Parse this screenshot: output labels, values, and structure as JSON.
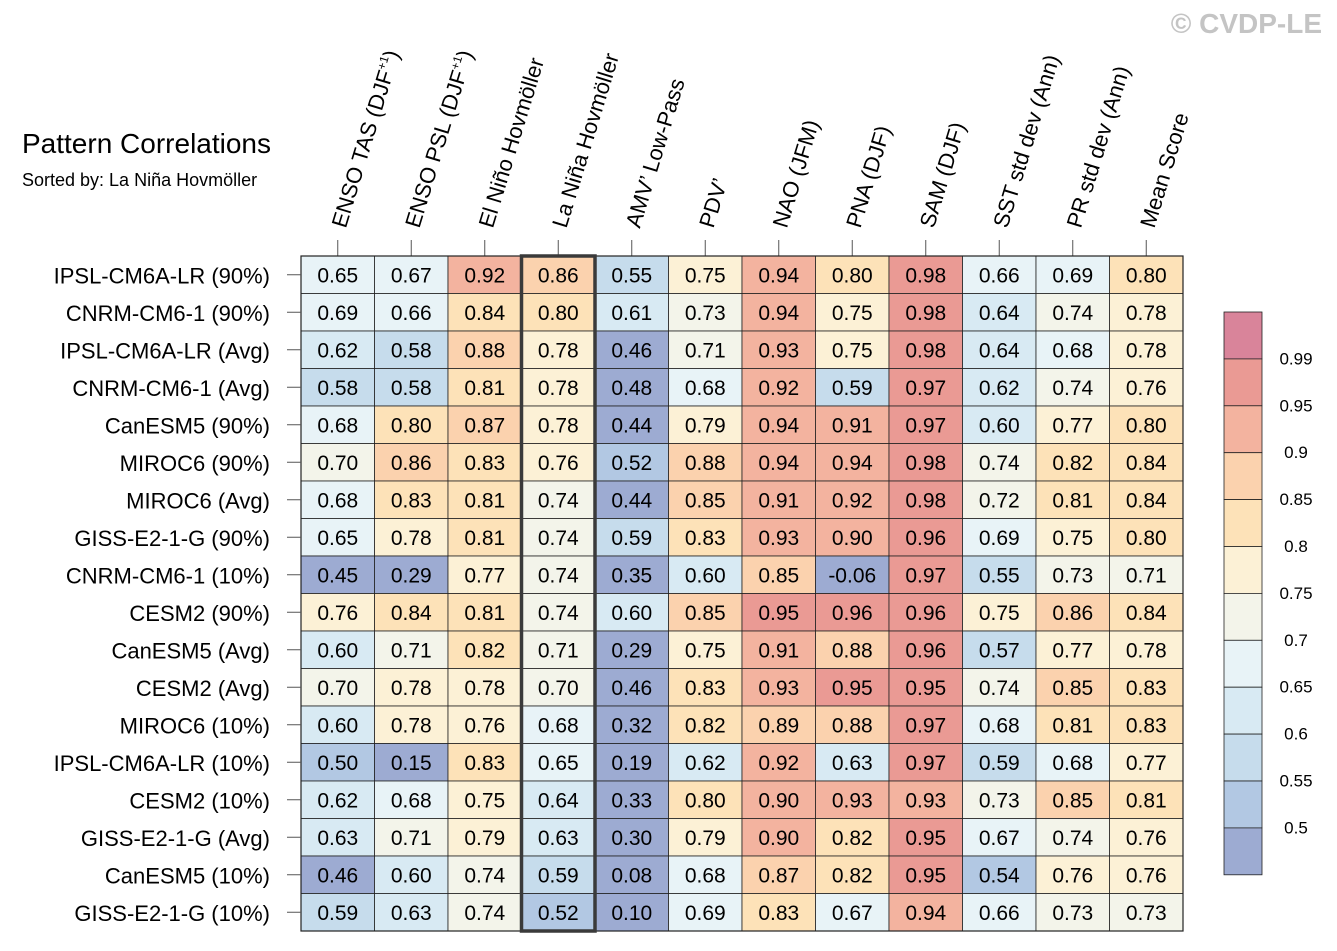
{
  "title": "Pattern Correlations",
  "subtitle": "Sorted by: La Niña Hovmöller",
  "watermark": "© CVDP-LE",
  "chart_data": {
    "type": "heatmap",
    "title": "Pattern Correlations",
    "subtitle": "Sorted by: La Niña Hovmöller",
    "highlighted_column": "La Niña Hovmöller",
    "columns": [
      "ENSO TAS (DJF+1)",
      "ENSO PSL (DJF+1)",
      "El Niño Hovmöller",
      "La Niña Hovmöller",
      "AMV’ Low-Pass",
      "PDV’",
      "NAO (JFM)",
      "PNA (DJF)",
      "SAM (DJF)",
      "SST std dev (Ann)",
      "PR std dev (Ann)",
      "Mean Score"
    ],
    "column_labels": [
      {
        "main": "ENSO TAS (DJF",
        "sup": "+1",
        "tail": ")"
      },
      {
        "main": "ENSO PSL (DJF",
        "sup": "+1",
        "tail": ")"
      },
      {
        "main": "El Niño Hovmöller",
        "sup": "",
        "tail": ""
      },
      {
        "main": "La Niña Hovmöller",
        "sup": "",
        "tail": ""
      },
      {
        "main": "AMV’ Low-Pass",
        "sup": "",
        "tail": ""
      },
      {
        "main": "PDV’",
        "sup": "",
        "tail": ""
      },
      {
        "main": "NAO (JFM)",
        "sup": "",
        "tail": ""
      },
      {
        "main": "PNA (DJF)",
        "sup": "",
        "tail": ""
      },
      {
        "main": "SAM (DJF)",
        "sup": "",
        "tail": ""
      },
      {
        "main": "SST std dev (Ann)",
        "sup": "",
        "tail": ""
      },
      {
        "main": "PR std dev (Ann)",
        "sup": "",
        "tail": ""
      },
      {
        "main": "Mean Score",
        "sup": "",
        "tail": ""
      }
    ],
    "rows": [
      "IPSL-CM6A-LR (90%)",
      "CNRM-CM6-1 (90%)",
      "IPSL-CM6A-LR (Avg)",
      "CNRM-CM6-1 (Avg)",
      "CanESM5 (90%)",
      "MIROC6 (90%)",
      "MIROC6 (Avg)",
      "GISS-E2-1-G (90%)",
      "CNRM-CM6-1 (10%)",
      "CESM2 (90%)",
      "CanESM5 (Avg)",
      "CESM2 (Avg)",
      "MIROC6 (10%)",
      "IPSL-CM6A-LR (10%)",
      "CESM2 (10%)",
      "GISS-E2-1-G (Avg)",
      "CanESM5 (10%)",
      "GISS-E2-1-G (10%)"
    ],
    "values": [
      [
        "0.65",
        "0.67",
        "0.92",
        "0.86",
        "0.55",
        "0.75",
        "0.94",
        "0.80",
        "0.98",
        "0.66",
        "0.69",
        "0.80"
      ],
      [
        "0.69",
        "0.66",
        "0.84",
        "0.80",
        "0.61",
        "0.73",
        "0.94",
        "0.75",
        "0.98",
        "0.64",
        "0.74",
        "0.78"
      ],
      [
        "0.62",
        "0.58",
        "0.88",
        "0.78",
        "0.46",
        "0.71",
        "0.93",
        "0.75",
        "0.98",
        "0.64",
        "0.68",
        "0.78"
      ],
      [
        "0.58",
        "0.58",
        "0.81",
        "0.78",
        "0.48",
        "0.68",
        "0.92",
        "0.59",
        "0.97",
        "0.62",
        "0.74",
        "0.76"
      ],
      [
        "0.68",
        "0.80",
        "0.87",
        "0.78",
        "0.44",
        "0.79",
        "0.94",
        "0.91",
        "0.97",
        "0.60",
        "0.77",
        "0.80"
      ],
      [
        "0.70",
        "0.86",
        "0.83",
        "0.76",
        "0.52",
        "0.88",
        "0.94",
        "0.94",
        "0.98",
        "0.74",
        "0.82",
        "0.84"
      ],
      [
        "0.68",
        "0.83",
        "0.81",
        "0.74",
        "0.44",
        "0.85",
        "0.91",
        "0.92",
        "0.98",
        "0.72",
        "0.81",
        "0.84"
      ],
      [
        "0.65",
        "0.78",
        "0.81",
        "0.74",
        "0.59",
        "0.83",
        "0.93",
        "0.90",
        "0.96",
        "0.69",
        "0.75",
        "0.80"
      ],
      [
        "0.45",
        "0.29",
        "0.77",
        "0.74",
        "0.35",
        "0.60",
        "0.85",
        "-0.06",
        "0.97",
        "0.55",
        "0.73",
        "0.71"
      ],
      [
        "0.76",
        "0.84",
        "0.81",
        "0.74",
        "0.60",
        "0.85",
        "0.95",
        "0.96",
        "0.96",
        "0.75",
        "0.86",
        "0.84"
      ],
      [
        "0.60",
        "0.71",
        "0.82",
        "0.71",
        "0.29",
        "0.75",
        "0.91",
        "0.88",
        "0.96",
        "0.57",
        "0.77",
        "0.78"
      ],
      [
        "0.70",
        "0.78",
        "0.78",
        "0.70",
        "0.46",
        "0.83",
        "0.93",
        "0.95",
        "0.95",
        "0.74",
        "0.85",
        "0.83"
      ],
      [
        "0.60",
        "0.78",
        "0.76",
        "0.68",
        "0.32",
        "0.82",
        "0.89",
        "0.88",
        "0.97",
        "0.68",
        "0.81",
        "0.83"
      ],
      [
        "0.50",
        "0.15",
        "0.83",
        "0.65",
        "0.19",
        "0.62",
        "0.92",
        "0.63",
        "0.97",
        "0.59",
        "0.68",
        "0.77"
      ],
      [
        "0.62",
        "0.68",
        "0.75",
        "0.64",
        "0.33",
        "0.80",
        "0.90",
        "0.93",
        "0.93",
        "0.73",
        "0.85",
        "0.81"
      ],
      [
        "0.63",
        "0.71",
        "0.79",
        "0.63",
        "0.30",
        "0.79",
        "0.90",
        "0.82",
        "0.95",
        "0.67",
        "0.74",
        "0.76"
      ],
      [
        "0.46",
        "0.60",
        "0.74",
        "0.59",
        "0.08",
        "0.68",
        "0.87",
        "0.82",
        "0.95",
        "0.54",
        "0.76",
        "0.76"
      ],
      [
        "0.59",
        "0.63",
        "0.74",
        "0.52",
        "0.10",
        "0.69",
        "0.83",
        "0.67",
        "0.94",
        "0.66",
        "0.73",
        "0.73"
      ]
    ],
    "colorbar": {
      "labels": [
        "0.99",
        "0.95",
        "0.9",
        "0.85",
        "0.8",
        "0.75",
        "0.7",
        "0.65",
        "0.6",
        "0.55",
        "0.5"
      ],
      "levels": [
        0.5,
        0.55,
        0.6,
        0.65,
        0.7,
        0.75,
        0.8,
        0.85,
        0.9,
        0.95,
        0.99
      ],
      "colors": [
        "#9dabd2",
        "#b2c8e3",
        "#c6dcec",
        "#d8eaf3",
        "#e8f3f7",
        "#f3f4ea",
        "#fcf1d6",
        "#fde2b8",
        "#fbd2ae",
        "#f3b39f",
        "#ea9a94",
        "#d9849a"
      ]
    }
  }
}
